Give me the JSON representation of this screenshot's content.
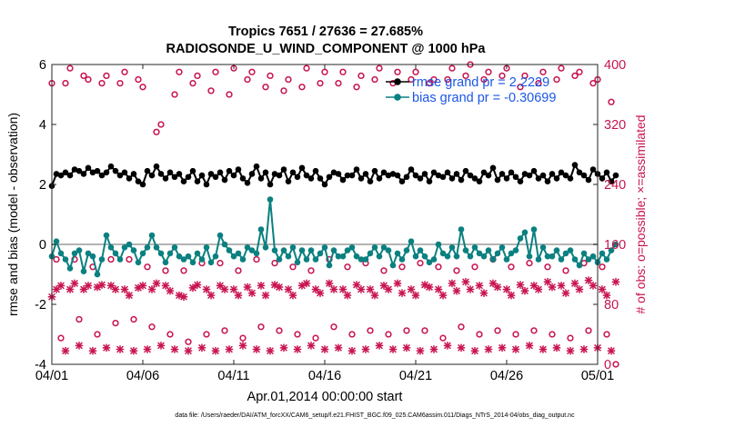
{
  "chart_data": {
    "type": "line",
    "title": "Tropics 7651 / 27636 = 27.685%",
    "subtitle": "RADIOSONDE_U_WIND_COMPONENT @ 1000 hPa",
    "xlabel": "Apr.01,2014 00:00:00 start",
    "ylabel": "rmse and bias (model - observation)",
    "ylabel_right": "# of obs: o=possible; ×=assimilated",
    "footnote": "data file: /Users/raeder/DAI/ATM_forcXX/CAM6_setup/f.e21.FHIST_BGC.f09_025.CAM6assim.011/Diags_NTrS_2014-04/obs_diag_output.nc",
    "xlim": [
      1,
      31
    ],
    "ylim": [
      -4,
      6
    ],
    "ylim_right": [
      0,
      400
    ],
    "x_tick_labels": [
      "04/01",
      "04/06",
      "04/11",
      "04/16",
      "04/21",
      "04/26",
      "05/01"
    ],
    "x_tick_values": [
      1,
      6,
      11,
      16,
      21,
      26,
      31
    ],
    "y_tick_labels": [
      "-4",
      "-2",
      "0",
      "2",
      "4",
      "6"
    ],
    "y_tick_values": [
      -4,
      -2,
      0,
      2,
      4,
      6
    ],
    "y_right_tick_labels": [
      "0",
      "80",
      "160",
      "240",
      "320",
      "400"
    ],
    "y_right_tick_values": [
      0,
      80,
      160,
      240,
      320,
      400
    ],
    "legend": [
      {
        "label": "rmse grand pr = 2.2229",
        "color": "#000000"
      },
      {
        "label": "bias grand pr = -0.30699",
        "color": "#0b8080"
      }
    ],
    "colors": {
      "rmse": "#000000",
      "bias": "#0b8080",
      "obs": "#c8144f",
      "zero_line": "#b3b3b3"
    },
    "series": [
      {
        "name": "rmse",
        "x_start": 1,
        "x_step": 0.25,
        "values": [
          1.95,
          2.35,
          2.3,
          2.4,
          2.3,
          2.5,
          2.45,
          2.35,
          2.55,
          2.4,
          2.45,
          2.3,
          2.4,
          2.6,
          2.45,
          2.3,
          2.4,
          2.2,
          2.35,
          2.1,
          2.0,
          2.45,
          2.3,
          2.6,
          2.35,
          2.2,
          2.4,
          2.25,
          2.35,
          2.1,
          2.25,
          2.45,
          2.1,
          2.3,
          2.0,
          2.35,
          2.25,
          2.4,
          2.15,
          2.45,
          2.3,
          2.5,
          2.2,
          2.05,
          2.35,
          2.6,
          2.2,
          2.4,
          2.0,
          2.35,
          2.3,
          2.5,
          2.1,
          2.4,
          2.25,
          2.55,
          2.3,
          2.2,
          2.45,
          2.2,
          2.0,
          2.25,
          2.4,
          2.35,
          2.15,
          2.3,
          2.3,
          2.5,
          2.2,
          2.35,
          2.1,
          2.45,
          2.2,
          2.4,
          2.3,
          2.35,
          2.3,
          2.1,
          2.25,
          2.5,
          2.3,
          2.2,
          2.35,
          2.1,
          2.4,
          2.3,
          2.25,
          2.4,
          2.2,
          2.35,
          2.15,
          2.45,
          2.3,
          2.2,
          2.1,
          2.4,
          2.3,
          2.55,
          2.15,
          2.35,
          2.2,
          2.4,
          2.25,
          2.1,
          2.35,
          2.3,
          2.45,
          2.2,
          2.3,
          2.1,
          2.35,
          2.2,
          2.4,
          2.3,
          2.2,
          2.65,
          2.4,
          2.3,
          2.15,
          2.5,
          2.35,
          2.2,
          2.4,
          2.1,
          2.3
        ]
      },
      {
        "name": "bias",
        "x_start": 1,
        "x_step": 0.25,
        "values": [
          -0.4,
          0.1,
          -0.3,
          -0.5,
          -0.8,
          -0.3,
          -0.2,
          -0.9,
          -0.3,
          -0.4,
          -1.0,
          -0.5,
          0.3,
          -0.1,
          -0.3,
          -0.5,
          -0.1,
          0.0,
          -0.2,
          -0.6,
          -0.3,
          -0.1,
          0.3,
          -0.1,
          -0.3,
          -0.6,
          -0.3,
          -0.1,
          -0.4,
          -0.5,
          -0.4,
          -0.6,
          -0.3,
          -0.5,
          -0.1,
          -0.6,
          -0.4,
          0.3,
          0.0,
          -0.2,
          -0.4,
          -0.3,
          -0.5,
          -0.1,
          -0.2,
          -0.3,
          0.5,
          -0.1,
          1.5,
          -0.2,
          -0.5,
          -0.2,
          -0.4,
          -0.1,
          -0.6,
          -0.2,
          -0.5,
          -0.2,
          -0.5,
          -0.3,
          -0.1,
          -0.7,
          -0.2,
          -0.4,
          -0.4,
          -0.2,
          -0.1,
          -0.4,
          -0.5,
          -0.5,
          -0.3,
          -0.1,
          -0.4,
          -0.1,
          -0.2,
          -0.7,
          -0.3,
          -0.5,
          -0.2,
          0.1,
          -0.4,
          -0.2,
          -0.4,
          -0.6,
          -0.5,
          0.0,
          -0.3,
          -0.4,
          -0.1,
          -0.4,
          0.5,
          -0.2,
          -0.4,
          -0.1,
          -0.3,
          -0.4,
          -0.2,
          -0.5,
          -0.3,
          -0.1,
          -0.5,
          -0.3,
          -0.2,
          0.2,
          0.4,
          -0.4,
          0.5,
          -0.5,
          -0.1,
          -0.4,
          -0.4,
          -0.2,
          -0.5,
          -0.3,
          -0.2,
          -0.5,
          -0.7,
          -0.3,
          -0.5,
          -0.4,
          -0.6,
          -0.3,
          -0.5,
          -0.2,
          0.0
        ]
      },
      {
        "name": "obs possible",
        "marker": "o",
        "x_start": 1,
        "x_step": 0.25,
        "values": [
          375,
          140,
          35,
          375,
          395,
          140,
          60,
          385,
          380,
          130,
          40,
          375,
          385,
          140,
          55,
          375,
          390,
          140,
          60,
          380,
          370,
          130,
          50,
          310,
          320,
          125,
          40,
          360,
          390,
          125,
          30,
          375,
          385,
          135,
          40,
          365,
          390,
          135,
          45,
          360,
          395,
          125,
          35,
          380,
          390,
          140,
          50,
          370,
          385,
          135,
          45,
          365,
          380,
          130,
          40,
          370,
          395,
          125,
          35,
          375,
          390,
          140,
          50,
          375,
          390,
          130,
          40,
          370,
          385,
          135,
          45,
          380,
          395,
          125,
          40,
          375,
          390,
          130,
          45,
          380,
          390,
          135,
          45,
          375,
          380,
          130,
          35,
          380,
          395,
          125,
          50,
          385,
          400,
          130,
          40,
          380,
          390,
          140,
          45,
          385,
          395,
          130,
          40,
          370,
          385,
          135,
          45,
          375,
          390,
          130,
          40,
          380,
          395,
          125,
          35,
          385,
          390,
          135,
          45,
          375,
          380,
          130,
          40,
          350,
          0
        ]
      },
      {
        "name": "obs assimilated",
        "marker": "x",
        "x_start": 1,
        "x_step": 0.25,
        "values": [
          90,
          100,
          105,
          18,
          100,
          108,
          25,
          100,
          105,
          18,
          103,
          106,
          22,
          105,
          100,
          20,
          100,
          92,
          18,
          102,
          105,
          20,
          100,
          108,
          25,
          105,
          98,
          20,
          92,
          90,
          18,
          102,
          106,
          22,
          100,
          92,
          18,
          105,
          100,
          20,
          100,
          92,
          25,
          103,
          95,
          20,
          105,
          92,
          18,
          106,
          103,
          22,
          100,
          92,
          20,
          105,
          108,
          25,
          100,
          95,
          20,
          108,
          100,
          22,
          100,
          92,
          18,
          106,
          100,
          20,
          100,
          92,
          25,
          105,
          100,
          20,
          108,
          95,
          22,
          100,
          92,
          18,
          106,
          103,
          20,
          100,
          92,
          25,
          108,
          98,
          22,
          110,
          100,
          18,
          105,
          95,
          20,
          108,
          103,
          22,
          100,
          92,
          20,
          106,
          98,
          25,
          105,
          100,
          20,
          110,
          103,
          22,
          105,
          95,
          18,
          108,
          100,
          20,
          112,
          105,
          22,
          100,
          92,
          18,
          110
        ]
      }
    ]
  }
}
